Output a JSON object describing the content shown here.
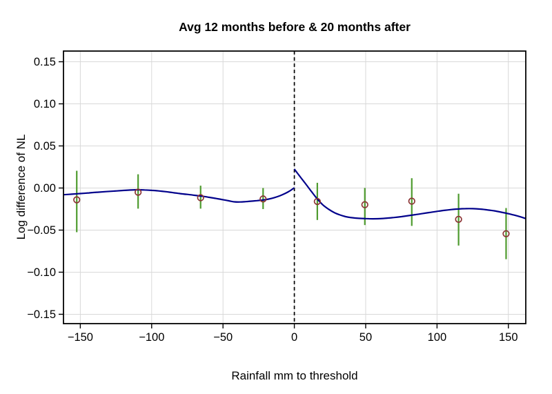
{
  "chart": {
    "title": "Avg 12 months before & 20 months after",
    "xlabel": "Rainfall mm to threshold",
    "ylabel": "Log difference of NL"
  },
  "chart_data": {
    "type": "scatter",
    "title": "Avg 12 months before & 20 months after",
    "xlabel": "Rainfall mm to threshold",
    "ylabel": "Log difference of NL",
    "xlim": [
      -161.8,
      162.2
    ],
    "ylim": [
      -0.1611,
      0.1627
    ],
    "grid": true,
    "legend": "none",
    "x_ticks": {
      "values": [
        -150,
        -100,
        -50,
        0,
        50,
        100,
        150
      ],
      "labels": [
        "−150",
        "−100",
        "−50",
        "0",
        "50",
        "100",
        "150"
      ]
    },
    "y_ticks": {
      "values": [
        0.15,
        0.1,
        0.05,
        0.0,
        -0.05,
        -0.1,
        -0.15
      ],
      "labels": [
        "0.15",
        "0.10",
        "0.05",
        "0.00",
        "−0.05",
        "−0.10",
        "−0.15"
      ]
    },
    "cutoff_line": {
      "x": 0,
      "style": "dashed"
    },
    "points": [
      {
        "x": -152.5,
        "y": -0.014,
        "ci_low": -0.0525,
        "ci_high": 0.0205
      },
      {
        "x": -109.5,
        "y": -0.005,
        "ci_low": -0.0245,
        "ci_high": 0.0163
      },
      {
        "x": -65.7,
        "y": -0.0115,
        "ci_low": -0.0245,
        "ci_high": 0.0028
      },
      {
        "x": -21.9,
        "y": -0.013,
        "ci_low": -0.025,
        "ci_high": 0.0
      },
      {
        "x": 16.1,
        "y": -0.016,
        "ci_low": -0.038,
        "ci_high": 0.0062
      },
      {
        "x": 49.4,
        "y": -0.0198,
        "ci_low": -0.044,
        "ci_high": 0.0001
      },
      {
        "x": 82.3,
        "y": -0.0156,
        "ci_low": -0.045,
        "ci_high": 0.0117
      },
      {
        "x": 115.1,
        "y": -0.0372,
        "ci_low": -0.0684,
        "ci_high": -0.0068
      },
      {
        "x": 148.4,
        "y": -0.0543,
        "ci_low": -0.0846,
        "ci_high": -0.0238
      }
    ],
    "fit_left": [
      [
        -161.8,
        -0.008
      ],
      [
        -156,
        -0.0073
      ],
      [
        -150,
        -0.0066
      ],
      [
        -144,
        -0.0058
      ],
      [
        -138,
        -0.005
      ],
      [
        -132,
        -0.0043
      ],
      [
        -126,
        -0.0036
      ],
      [
        -120,
        -0.0029
      ],
      [
        -115,
        -0.0024
      ],
      [
        -110,
        -0.0021
      ],
      [
        -105,
        -0.0023
      ],
      [
        -100,
        -0.0028
      ],
      [
        -95,
        -0.0035
      ],
      [
        -90,
        -0.0044
      ],
      [
        -85,
        -0.0055
      ],
      [
        -80,
        -0.0067
      ],
      [
        -75,
        -0.0076
      ],
      [
        -70,
        -0.0086
      ],
      [
        -65,
        -0.0097
      ],
      [
        -60,
        -0.011
      ],
      [
        -55,
        -0.0124
      ],
      [
        -50,
        -0.0139
      ],
      [
        -46,
        -0.0152
      ],
      [
        -42,
        -0.0164
      ],
      [
        -38,
        -0.0166
      ],
      [
        -34,
        -0.0162
      ],
      [
        -30,
        -0.0156
      ],
      [
        -26,
        -0.015
      ],
      [
        -22,
        -0.0143
      ],
      [
        -18,
        -0.0131
      ],
      [
        -14,
        -0.0114
      ],
      [
        -10,
        -0.0091
      ],
      [
        -7,
        -0.0069
      ],
      [
        -4,
        -0.0043
      ],
      [
        -2,
        -0.0021
      ],
      [
        0,
        0.0003
      ]
    ],
    "fit_right": [
      [
        0,
        0.0225
      ],
      [
        4,
        0.0135
      ],
      [
        8,
        0.0048
      ],
      [
        12,
        -0.0042
      ],
      [
        16,
        -0.0128
      ],
      [
        20,
        -0.02
      ],
      [
        24,
        -0.0252
      ],
      [
        28,
        -0.0292
      ],
      [
        32,
        -0.032
      ],
      [
        36,
        -0.034
      ],
      [
        40,
        -0.0352
      ],
      [
        45,
        -0.036
      ],
      [
        50,
        -0.0363
      ],
      [
        55,
        -0.0366
      ],
      [
        60,
        -0.0364
      ],
      [
        65,
        -0.0358
      ],
      [
        70,
        -0.035
      ],
      [
        75,
        -0.034
      ],
      [
        80,
        -0.0328
      ],
      [
        85,
        -0.0316
      ],
      [
        90,
        -0.0303
      ],
      [
        95,
        -0.029
      ],
      [
        100,
        -0.0277
      ],
      [
        105,
        -0.0266
      ],
      [
        110,
        -0.0256
      ],
      [
        115,
        -0.0249
      ],
      [
        120,
        -0.0245
      ],
      [
        125,
        -0.0245
      ],
      [
        130,
        -0.025
      ],
      [
        135,
        -0.0259
      ],
      [
        140,
        -0.0271
      ],
      [
        145,
        -0.0287
      ],
      [
        150,
        -0.0305
      ],
      [
        155,
        -0.0326
      ],
      [
        159,
        -0.0345
      ],
      [
        162,
        -0.0362
      ]
    ],
    "colors": {
      "fit_line": "#00008b",
      "point_marker": "#8b3333",
      "error_bar": "#4e9b2e",
      "grid_line": "#d8d8d8",
      "cutoff_line": "#000000",
      "axis": "#000000",
      "background": "#ffffff"
    }
  }
}
